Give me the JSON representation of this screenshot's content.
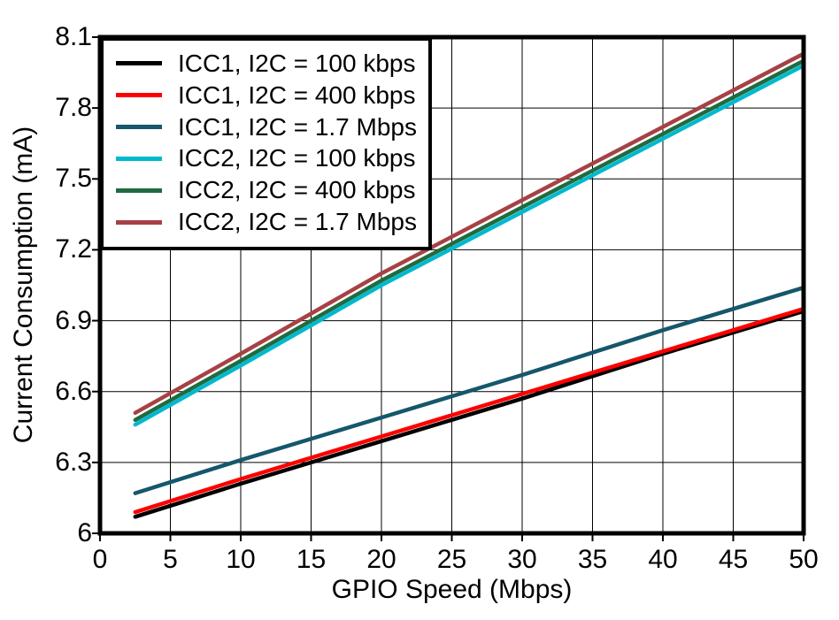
{
  "chart_data": {
    "type": "line",
    "title": "",
    "xlabel": "GPIO Speed (Mbps)",
    "ylabel": "Current Consumption (mA)",
    "xlim": [
      0,
      50
    ],
    "ylim": [
      6,
      8.1
    ],
    "xticks": [
      0,
      5,
      10,
      15,
      20,
      25,
      30,
      35,
      40,
      45,
      50
    ],
    "yticks": [
      6,
      6.3,
      6.6,
      6.9,
      7.2,
      7.5,
      7.8,
      8.1
    ],
    "grid": true,
    "legend_position": "top-left",
    "x": [
      2.5,
      10,
      20,
      30,
      40,
      50
    ],
    "series": [
      {
        "name": "ICC1, I2C = 100 kbps",
        "color": "#000000",
        "values": [
          6.07,
          6.21,
          6.39,
          6.57,
          6.76,
          6.94
        ]
      },
      {
        "name": "ICC1, I2C = 400 kbps",
        "color": "#FF0000",
        "values": [
          6.09,
          6.23,
          6.41,
          6.59,
          6.77,
          6.95
        ]
      },
      {
        "name": "ICC1, I2C = 1.7 Mbps",
        "color": "#15576B",
        "values": [
          6.17,
          6.31,
          6.49,
          6.67,
          6.86,
          7.04
        ]
      },
      {
        "name": "ICC2, I2C = 100 kbps",
        "color": "#00B9CE",
        "values": [
          6.46,
          6.71,
          7.05,
          7.36,
          7.67,
          7.98
        ]
      },
      {
        "name": "ICC2, I2C = 400 kbps",
        "color": "#206B40",
        "values": [
          6.48,
          6.73,
          7.07,
          7.38,
          7.69,
          8.0
        ]
      },
      {
        "name": "ICC2, I2C = 1.7 Mbps",
        "color": "#A64245",
        "values": [
          6.51,
          6.76,
          7.1,
          7.41,
          7.72,
          8.03
        ]
      }
    ],
    "axis_color": "#000000",
    "grid_color": "#000000",
    "background_color": "#FFFFFF"
  }
}
